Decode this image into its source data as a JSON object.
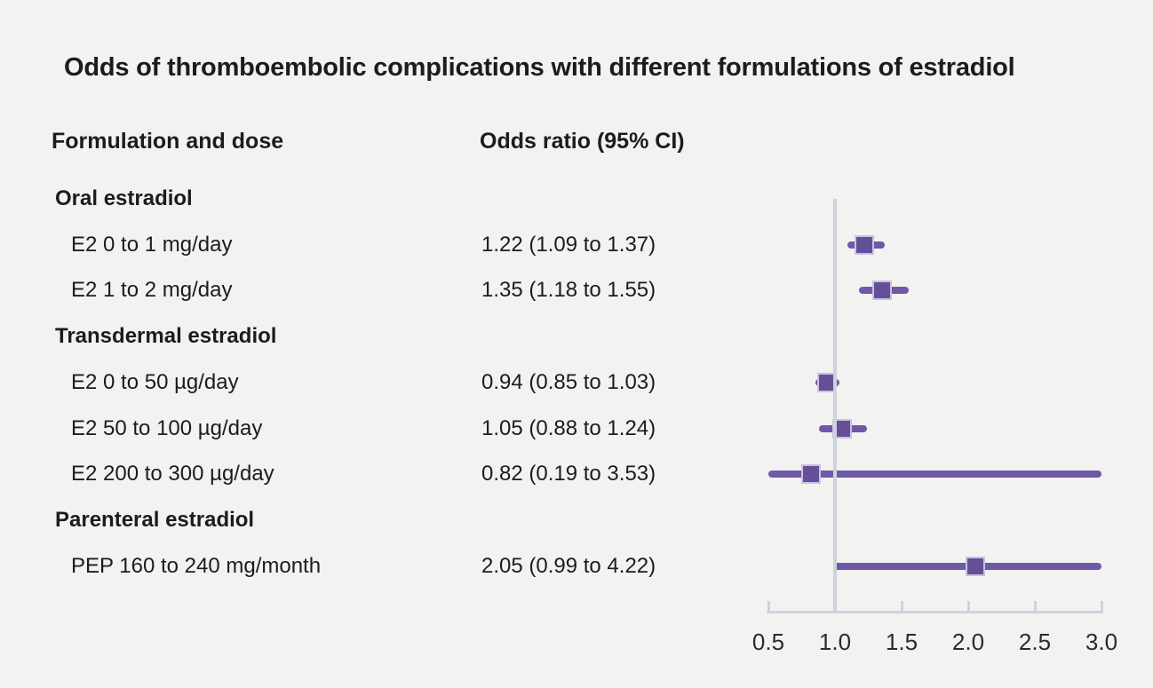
{
  "title": "Odds of thromboemblic complications with different formulations of estradiol",
  "title_text": "Odds of thromboembolic complications with different formulations of estradiol",
  "columns": {
    "left_header": "Formulation and dose",
    "right_header": "Odds ratio (95% CI)"
  },
  "colors": {
    "background": "#f2f2f1",
    "text": "#1c1c1c",
    "ci_line": "#6f59a6",
    "marker_fill": "#655098",
    "marker_border": "#c9c1e3",
    "axis": "#cdd2dd"
  },
  "chart_data": {
    "type": "forest",
    "title": "Odds of thromboembolic complications with different formulations of estradiol",
    "xlabel": "Odds ratio",
    "axis": {
      "min": 0.5,
      "max": 3.0,
      "ticks": [
        "0.5",
        "1.0",
        "1.5",
        "2.0",
        "2.5",
        "3.0"
      ],
      "tick_values": [
        0.5,
        1.0,
        1.5,
        2.0,
        2.5,
        3.0
      ],
      "reference_line": 1.0,
      "grid": false
    },
    "rows": [
      {
        "kind": "section",
        "label": "Oral estradiol"
      },
      {
        "kind": "item",
        "label": "E2 0 to 1 mg/day",
        "or_text": "1.22 (1.09 to 1.37)",
        "or": 1.22,
        "lo": 1.09,
        "hi": 1.37
      },
      {
        "kind": "item",
        "label": "E2 1 to 2 mg/day",
        "or_text": "1.35 (1.18 to 1.55)",
        "or": 1.35,
        "lo": 1.18,
        "hi": 1.55
      },
      {
        "kind": "section",
        "label": "Transdermal estradiol"
      },
      {
        "kind": "item",
        "label": "E2 0 to 50 µg/day",
        "or_text": "0.94 (0.85 to 1.03)",
        "or": 0.94,
        "lo": 0.85,
        "hi": 1.03
      },
      {
        "kind": "item",
        "label": "E2 50 to 100 µg/day",
        "or_text": "1.05 (0.88 to 1.24)",
        "or": 1.05,
        "lo": 0.88,
        "hi": 1.24
      },
      {
        "kind": "item",
        "label": "E2 200 to 300 µg/day",
        "or_text": "0.82 (0.19 to 3.53)",
        "or": 0.82,
        "lo": 0.19,
        "hi": 3.53
      },
      {
        "kind": "section",
        "label": "Parenteral estradiol"
      },
      {
        "kind": "item",
        "label": "PEP 160 to 240 mg/month",
        "or_text": "2.05 (0.99 to 4.22)",
        "or": 2.05,
        "lo": 0.99,
        "hi": 4.22
      }
    ]
  }
}
